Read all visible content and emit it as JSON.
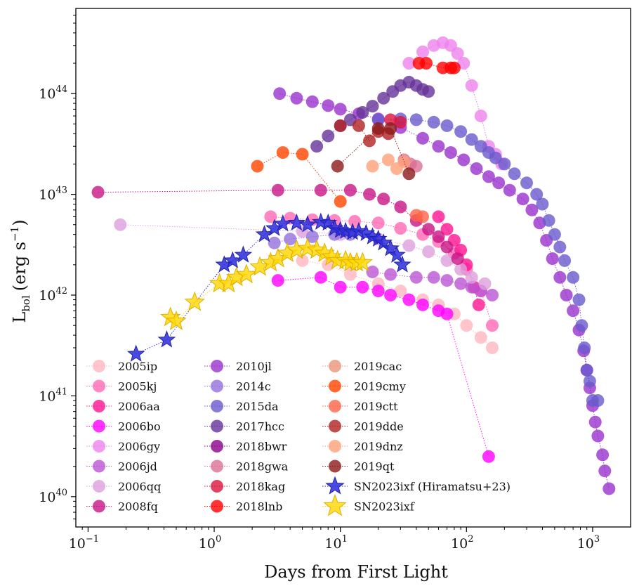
{
  "chart_data": {
    "type": "scatter",
    "xlabel": "Days from First Light",
    "ylabel_main": "L",
    "ylabel_sub": "bol",
    "ylabel_units": "(erg s",
    "ylabel_exp": "−1",
    "ylabel_close": ")",
    "xscale": "log",
    "yscale": "log",
    "xlim": [
      0.08,
      2000
    ],
    "ylim": [
      5e+39,
      7e+44
    ],
    "xticks": [
      {
        "value": 0.1,
        "base": "10",
        "exp": "−1"
      },
      {
        "value": 1,
        "base": "10",
        "exp": "0"
      },
      {
        "value": 10,
        "base": "10",
        "exp": "1"
      },
      {
        "value": 100,
        "base": "10",
        "exp": "2"
      },
      {
        "value": 1000,
        "base": "10",
        "exp": "3"
      }
    ],
    "yticks": [
      {
        "value": 1e+40,
        "base": "10",
        "exp": "40"
      },
      {
        "value": 1e+41,
        "base": "10",
        "exp": "41"
      },
      {
        "value": 1e+42,
        "base": "10",
        "exp": "42"
      },
      {
        "value": 1e+43,
        "base": "10",
        "exp": "43"
      },
      {
        "value": 1e+44,
        "base": "10",
        "exp": "44"
      }
    ],
    "grid": false,
    "legend_position": "lower-left",
    "legend_columns": 3,
    "series": [
      {
        "name": "2005ip",
        "color": "#ffb6c1",
        "marker": "circle",
        "points": [
          [
            5,
            2.2e+42
          ],
          [
            8,
            2e+42
          ],
          [
            12,
            1.6e+42
          ],
          [
            20,
            1.3e+42
          ],
          [
            30,
            1.1e+42
          ],
          [
            45,
            9e+41
          ],
          [
            60,
            8e+41
          ],
          [
            80,
            6.5e+41
          ],
          [
            100,
            5e+41
          ],
          [
            130,
            3.8e+41
          ],
          [
            160,
            3e+41
          ]
        ]
      },
      {
        "name": "2005kj",
        "color": "#ff69b4",
        "marker": "circle",
        "points": [
          [
            2.8,
            6e+42
          ],
          [
            4,
            5.8e+42
          ],
          [
            6,
            5.6e+42
          ],
          [
            9,
            5.5e+42
          ],
          [
            13,
            5.4e+42
          ],
          [
            20,
            5.2e+42
          ],
          [
            30,
            4.6e+42
          ],
          [
            45,
            4e+42
          ],
          [
            60,
            3.4e+42
          ],
          [
            80,
            2.6e+42
          ],
          [
            100,
            1.8e+42
          ],
          [
            130,
            1.1e+42
          ],
          [
            160,
            5e+41
          ]
        ]
      },
      {
        "name": "2006aa",
        "color": "#ff1493",
        "marker": "circle",
        "points": [
          [
            60,
            6e+42
          ],
          [
            70,
            4.5e+42
          ],
          [
            80,
            3.5e+42
          ],
          [
            90,
            2.8e+42
          ],
          [
            100,
            2e+42
          ],
          [
            115,
            1.2e+42
          ],
          [
            125,
            8e+41
          ]
        ]
      },
      {
        "name": "2006bo",
        "color": "#ff00ff",
        "marker": "circle",
        "points": [
          [
            3.2,
            1.4e+42
          ],
          [
            7,
            1.5e+42
          ],
          [
            10,
            1.2e+42
          ],
          [
            15,
            1.2e+42
          ],
          [
            20,
            1.1e+42
          ],
          [
            25,
            1e+42
          ],
          [
            35,
            9e+41
          ],
          [
            45,
            8e+41
          ],
          [
            60,
            7e+41
          ],
          [
            70,
            6.5e+41
          ],
          [
            150,
            2.5e+40
          ]
        ]
      },
      {
        "name": "2006gy",
        "color": "#ee82ee",
        "marker": "circle",
        "points": [
          [
            35,
            2e+44
          ],
          [
            45,
            2.6e+44
          ],
          [
            55,
            3e+44
          ],
          [
            65,
            3.2e+44
          ],
          [
            75,
            3e+44
          ],
          [
            85,
            2.5e+44
          ],
          [
            95,
            2e+44
          ],
          [
            110,
            1.2e+44
          ],
          [
            130,
            6e+43
          ],
          [
            150,
            3e+43
          ],
          [
            170,
            2.5e+43
          ],
          [
            190,
            2e+43
          ]
        ]
      },
      {
        "name": "2006jd",
        "color": "#ba55d3",
        "marker": "circle",
        "points": [
          [
            18,
            1.7e+42
          ],
          [
            25,
            1.6e+42
          ],
          [
            40,
            1.5e+42
          ],
          [
            55,
            1.5e+42
          ],
          [
            70,
            1.4e+42
          ],
          [
            90,
            1.3e+42
          ],
          [
            110,
            1.2e+42
          ],
          [
            130,
            1.1e+42
          ],
          [
            160,
            1e+42
          ]
        ]
      },
      {
        "name": "2006qq",
        "color": "#dda0dd",
        "marker": "circle",
        "points": [
          [
            0.18,
            5e+42
          ],
          [
            5,
            4.3e+42
          ],
          [
            10,
            4e+42
          ],
          [
            20,
            3.6e+42
          ],
          [
            35,
            3.1e+42
          ],
          [
            50,
            2.7e+42
          ],
          [
            70,
            2.2e+42
          ],
          [
            90,
            1.8e+42
          ],
          [
            110,
            1.5e+42
          ],
          [
            140,
            1.3e+42
          ]
        ]
      },
      {
        "name": "2008fq",
        "color": "#c71585",
        "marker": "circle",
        "points": [
          [
            0.12,
            1.05e+43
          ],
          [
            3.2,
            1.1e+43
          ],
          [
            7,
            1.1e+43
          ],
          [
            12,
            1.1e+43
          ],
          [
            17,
            1e+43
          ],
          [
            22,
            9e+42
          ],
          [
            30,
            7.5e+42
          ],
          [
            40,
            5.5e+42
          ],
          [
            50,
            4.5e+42
          ],
          [
            60,
            3.8e+42
          ],
          [
            70,
            3e+42
          ],
          [
            85,
            2.3e+42
          ]
        ]
      },
      {
        "name": "2010jl",
        "color": "#9932cc",
        "marker": "circle",
        "points": [
          [
            3.3,
            1e+44
          ],
          [
            4.5,
            9e+43
          ],
          [
            6,
            8.3e+43
          ],
          [
            8,
            7.6e+43
          ],
          [
            10,
            7e+43
          ],
          [
            14,
            6.3e+43
          ],
          [
            20,
            5.6e+43
          ],
          [
            30,
            4.6e+43
          ],
          [
            45,
            3.6e+43
          ],
          [
            60,
            3e+43
          ],
          [
            75,
            2.6e+43
          ],
          [
            95,
            2.2e+43
          ],
          [
            120,
            1.8e+43
          ],
          [
            150,
            1.5e+43
          ],
          [
            180,
            1.3e+43
          ],
          [
            220,
            1.1e+43
          ],
          [
            280,
            9e+42
          ],
          [
            330,
            7e+42
          ],
          [
            380,
            5.2e+42
          ],
          [
            430,
            3.5e+42
          ],
          [
            480,
            2.3e+42
          ],
          [
            550,
            1.5e+42
          ],
          [
            620,
            1e+42
          ],
          [
            700,
            7e+41
          ],
          [
            780,
            4.5e+41
          ],
          [
            850,
            2.8e+41
          ],
          [
            900,
            1.8e+41
          ],
          [
            950,
            1.2e+41
          ],
          [
            1000,
            8e+40
          ],
          [
            1050,
            5.5e+40
          ],
          [
            1100,
            4e+40
          ],
          [
            1200,
            2.6e+40
          ],
          [
            1250,
            1.8e+40
          ],
          [
            1350,
            1.2e+40
          ]
        ]
      },
      {
        "name": "2014c",
        "color": "#9370db",
        "marker": "circle",
        "points": [
          [
            3,
            3.3e+42
          ],
          [
            4,
            3.6e+42
          ],
          [
            6,
            3.8e+42
          ],
          [
            9,
            4e+42
          ],
          [
            12,
            4e+42
          ]
        ]
      },
      {
        "name": "2015da",
        "color": "#6a5acd",
        "marker": "circle",
        "points": [
          [
            20,
            5.5e+43
          ],
          [
            30,
            5.6e+43
          ],
          [
            40,
            5.5e+43
          ],
          [
            55,
            5.2e+43
          ],
          [
            70,
            4.8e+43
          ],
          [
            90,
            4.2e+43
          ],
          [
            110,
            3.5e+43
          ],
          [
            130,
            3e+43
          ],
          [
            150,
            2.6e+43
          ],
          [
            170,
            2.3e+43
          ],
          [
            200,
            2e+43
          ],
          [
            240,
            1.6e+43
          ],
          [
            300,
            1.3e+43
          ],
          [
            360,
            1e+43
          ],
          [
            400,
            8e+42
          ],
          [
            450,
            5.5e+42
          ],
          [
            500,
            4e+42
          ],
          [
            550,
            3e+42
          ],
          [
            600,
            2.2e+42
          ],
          [
            700,
            1.5e+42
          ],
          [
            780,
            9e+41
          ],
          [
            820,
            5e+41
          ],
          [
            860,
            3e+41
          ],
          [
            900,
            1.8e+41
          ],
          [
            950,
            1.4e+41
          ],
          [
            1000,
            9e+40
          ],
          [
            1100,
            9e+40
          ]
        ]
      },
      {
        "name": "2017hcc",
        "color": "#663399",
        "marker": "circle",
        "points": [
          [
            6.5,
            3e+43
          ],
          [
            8,
            3.8e+43
          ],
          [
            10,
            4.8e+43
          ],
          [
            12,
            5.5e+43
          ],
          [
            15,
            6.5e+43
          ],
          [
            18,
            7.5e+43
          ],
          [
            22,
            9e+43
          ],
          [
            26,
            1.05e+44
          ],
          [
            30,
            1.2e+44
          ],
          [
            35,
            1.3e+44
          ],
          [
            40,
            1.2e+44
          ],
          [
            45,
            1.1e+44
          ],
          [
            50,
            1.05e+44
          ]
        ]
      },
      {
        "name": "2018bwr",
        "color": "#8b008b",
        "marker": "circle"
      },
      {
        "name": "2018gwa",
        "color": "#db7093",
        "marker": "circle",
        "points": [
          [
            32,
            2.2e+43
          ],
          [
            36,
            2e+43
          ],
          [
            40,
            1.9e+43
          ]
        ]
      },
      {
        "name": "2018kag",
        "color": "#dc143c",
        "marker": "circle",
        "points": [
          [
            25,
            5.5e+43
          ],
          [
            30,
            5.2e+43
          ]
        ]
      },
      {
        "name": "2018lnb",
        "color": "#ff0000",
        "marker": "circle",
        "points": [
          [
            42,
            2e+44
          ],
          [
            48,
            2e+44
          ],
          [
            65,
            1.8e+44
          ],
          [
            75,
            1.8e+44
          ],
          [
            80,
            1.8e+44
          ]
        ]
      },
      {
        "name": "2019cac",
        "color": "#e9967a",
        "marker": "circle"
      },
      {
        "name": "2019cmy",
        "color": "#ff4500",
        "marker": "circle",
        "points": [
          [
            2.2,
            1.9e+43
          ],
          [
            3.5,
            2.6e+43
          ],
          [
            5,
            2.5e+43
          ],
          [
            10,
            8.5e+42
          ]
        ]
      },
      {
        "name": "2019ctt",
        "color": "#ff6347",
        "marker": "circle",
        "points": [
          [
            40,
            6.2e+42
          ],
          [
            45,
            6e+42
          ]
        ]
      },
      {
        "name": "2019dde",
        "color": "#b22222",
        "marker": "circle",
        "points": [
          [
            10,
            4.8e+43
          ],
          [
            14,
            4.8e+43
          ],
          [
            17,
            3.4e+43
          ],
          [
            20,
            4.2e+43
          ],
          [
            24,
            4e+43
          ]
        ]
      },
      {
        "name": "2019dnz",
        "color": "#ffa07a",
        "marker": "circle",
        "points": [
          [
            18,
            1.9e+43
          ],
          [
            24,
            2.2e+43
          ],
          [
            28,
            1.8e+43
          ],
          [
            32,
            2.1e+43
          ]
        ]
      },
      {
        "name": "2019qt",
        "color": "#8b1a1a",
        "marker": "circle",
        "points": [
          [
            9.5,
            1.9e+43
          ],
          [
            20,
            4.5e+43
          ],
          [
            25,
            4.5e+43
          ],
          [
            35,
            1.6e+43
          ]
        ]
      },
      {
        "name": "SN2023ixf (Hiramatsu+23)",
        "color": "#2b2bdc",
        "marker": "star",
        "points": [
          [
            0.24,
            2.6e+41
          ],
          [
            0.42,
            3.6e+41
          ],
          [
            1.2,
            2e+42
          ],
          [
            1.4,
            2.2e+42
          ],
          [
            1.7,
            2.5e+42
          ],
          [
            2.5,
            4e+42
          ],
          [
            3,
            4.6e+42
          ],
          [
            3.5,
            5.1e+42
          ],
          [
            4.5,
            5.2e+42
          ],
          [
            5.5,
            5e+42
          ],
          [
            7,
            5.3e+42
          ],
          [
            8,
            5.2e+42
          ],
          [
            9,
            4.6e+42
          ],
          [
            10,
            4.4e+42
          ],
          [
            11,
            4.3e+42
          ],
          [
            12.5,
            4.2e+42
          ],
          [
            14,
            4.3e+42
          ],
          [
            16,
            4.1e+42
          ],
          [
            18,
            3.8e+42
          ],
          [
            20,
            3.6e+42
          ],
          [
            22,
            3.3e+42
          ],
          [
            25,
            2.9e+42
          ],
          [
            28,
            2.5e+42
          ],
          [
            31,
            2e+42
          ]
        ]
      },
      {
        "name": "SN2023ixf",
        "color": "#ffd700",
        "marker": "star",
        "points": [
          [
            0.45,
            6e+41
          ],
          [
            0.5,
            5.5e+41
          ],
          [
            0.7,
            8.5e+41
          ],
          [
            1.1,
            1.3e+42
          ],
          [
            1.3,
            1.3e+42
          ],
          [
            1.5,
            1.5e+42
          ],
          [
            1.8,
            1.6e+42
          ],
          [
            2.3,
            1.9e+42
          ],
          [
            2.8,
            2.1e+42
          ],
          [
            3.2,
            2.3e+42
          ],
          [
            3.8,
            2.6e+42
          ],
          [
            4.5,
            2.8e+42
          ],
          [
            5.5,
            2.9e+42
          ],
          [
            6.5,
            2.8e+42
          ],
          [
            7.5,
            2.6e+42
          ],
          [
            8.5,
            2.4e+42
          ],
          [
            9.5,
            2.2e+42
          ],
          [
            11,
            2.2e+42
          ],
          [
            12,
            2.1e+42
          ],
          [
            13.5,
            2.1e+42
          ],
          [
            15,
            2.1e+42
          ]
        ]
      }
    ]
  }
}
